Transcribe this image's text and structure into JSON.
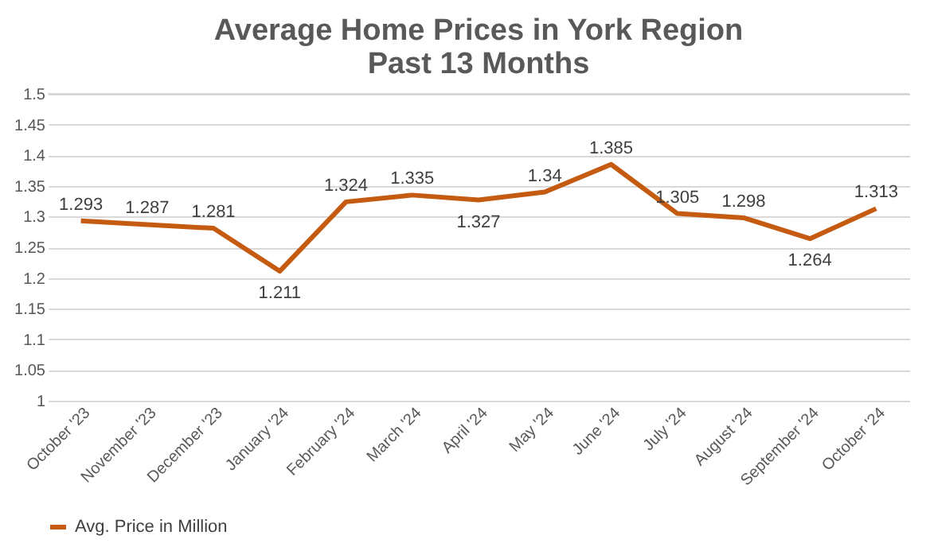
{
  "chart_data": {
    "type": "line",
    "title": "Average Home Prices in York Region\nPast 13 Months",
    "categories": [
      "October '23",
      "November '23",
      "December '23",
      "January '24",
      "February '24",
      "March '24",
      "April '24",
      "May '24",
      "June '24",
      "July '24",
      "August '24",
      "September '24",
      "October '24"
    ],
    "series": [
      {
        "name": "Avg. Price in Million",
        "color": "#c55a11",
        "values": [
          1.293,
          1.287,
          1.281,
          1.211,
          1.324,
          1.335,
          1.327,
          1.34,
          1.385,
          1.305,
          1.298,
          1.264,
          1.313
        ]
      }
    ],
    "ylim": [
      1,
      1.5
    ],
    "yticks": [
      1,
      1.05,
      1.1,
      1.15,
      1.2,
      1.25,
      1.3,
      1.35,
      1.4,
      1.45,
      1.5
    ],
    "grid": "y",
    "legend": "bottom",
    "data_labels": true,
    "marker": "none",
    "line_style": "solid"
  }
}
